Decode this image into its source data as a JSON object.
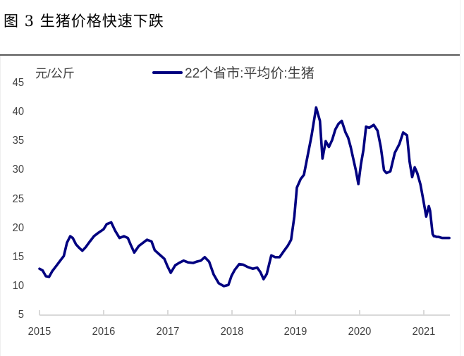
{
  "title": "图 3  生猪价格快速下跌",
  "unit_label": "元/公斤",
  "legend": {
    "label": "22个省市:平均价:生猪",
    "color": "#000080"
  },
  "axis": {
    "y_ticks": [
      "45",
      "40",
      "35",
      "30",
      "25",
      "20",
      "15",
      "10",
      "5"
    ],
    "x_ticks": [
      "2015",
      "2016",
      "2017",
      "2018",
      "2019",
      "2020",
      "2021"
    ]
  },
  "chart_data": {
    "type": "line",
    "title": "图 3  生猪价格快速下跌",
    "xlabel": "",
    "ylabel": "元/公斤",
    "ylim": [
      5,
      45
    ],
    "xlim": [
      2015.0,
      2021.4
    ],
    "grid": false,
    "legend_position": "top",
    "series": [
      {
        "name": "22个省市:平均价:生猪",
        "color": "#000080",
        "x": [
          2015.0,
          2015.05,
          2015.1,
          2015.15,
          2015.2,
          2015.27,
          2015.33,
          2015.38,
          2015.43,
          2015.48,
          2015.52,
          2015.57,
          2015.62,
          2015.67,
          2015.72,
          2015.78,
          2015.85,
          2015.92,
          2016.0,
          2016.05,
          2016.12,
          2016.18,
          2016.25,
          2016.32,
          2016.38,
          2016.43,
          2016.48,
          2016.55,
          2016.62,
          2016.68,
          2016.75,
          2016.8,
          2016.88,
          2016.95,
          2017.0,
          2017.05,
          2017.12,
          2017.18,
          2017.25,
          2017.32,
          2017.4,
          2017.45,
          2017.52,
          2017.58,
          2017.65,
          2017.72,
          2017.8,
          2017.88,
          2017.95,
          2018.0,
          2018.05,
          2018.12,
          2018.18,
          2018.25,
          2018.33,
          2018.4,
          2018.45,
          2018.5,
          2018.55,
          2018.62,
          2018.68,
          2018.75,
          2018.82,
          2018.88,
          2018.93,
          2018.98,
          2019.02,
          2019.08,
          2019.13,
          2019.18,
          2019.25,
          2019.32,
          2019.38,
          2019.42,
          2019.47,
          2019.52,
          2019.57,
          2019.62,
          2019.67,
          2019.72,
          2019.75,
          2019.78,
          2019.82,
          2019.86,
          2019.9,
          2019.94,
          2019.98,
          2020.02,
          2020.06,
          2020.1,
          2020.15,
          2020.22,
          2020.28,
          2020.33,
          2020.38,
          2020.42,
          2020.48,
          2020.55,
          2020.62,
          2020.68,
          2020.74,
          2020.78,
          2020.82,
          2020.86,
          2020.9,
          2020.95,
          2021.0,
          2021.04,
          2021.08,
          2021.1,
          2021.12,
          2021.14,
          2021.16,
          2021.18,
          2021.2,
          2021.23,
          2021.26,
          2021.29,
          2021.32,
          2021.36,
          2021.4
        ],
        "values": [
          13.0,
          12.7,
          11.7,
          11.6,
          12.6,
          13.6,
          14.5,
          15.2,
          17.5,
          18.6,
          18.3,
          17.2,
          16.6,
          16.1,
          16.7,
          17.6,
          18.6,
          19.2,
          19.8,
          20.7,
          21.0,
          19.6,
          18.3,
          18.6,
          18.3,
          17.0,
          15.8,
          16.9,
          17.5,
          18.0,
          17.7,
          16.2,
          15.4,
          14.7,
          13.4,
          12.3,
          13.6,
          14.0,
          14.4,
          14.1,
          14.0,
          14.2,
          14.4,
          15.0,
          14.2,
          12.0,
          10.5,
          10.0,
          10.2,
          11.8,
          12.8,
          13.8,
          13.7,
          13.3,
          13.0,
          13.2,
          12.4,
          11.2,
          12.1,
          15.3,
          15.0,
          15.0,
          16.1,
          17.0,
          18.0,
          22.0,
          27.0,
          28.5,
          29.2,
          32.0,
          36.0,
          40.8,
          38.5,
          32.0,
          35.0,
          34.0,
          35.2,
          37.0,
          38.0,
          38.5,
          37.5,
          36.5,
          35.6,
          34.0,
          32.0,
          30.0,
          27.6,
          31.0,
          33.5,
          37.5,
          37.3,
          37.8,
          36.8,
          34.0,
          30.0,
          29.5,
          29.8,
          33.0,
          34.5,
          36.5,
          36.0,
          31.5,
          28.8,
          30.5,
          29.5,
          27.5,
          24.5,
          22.0,
          23.8,
          23.0,
          21.0,
          19.0,
          18.6,
          18.6,
          18.5,
          18.5,
          18.4,
          18.3,
          18.3,
          18.3,
          18.3
        ]
      }
    ]
  }
}
